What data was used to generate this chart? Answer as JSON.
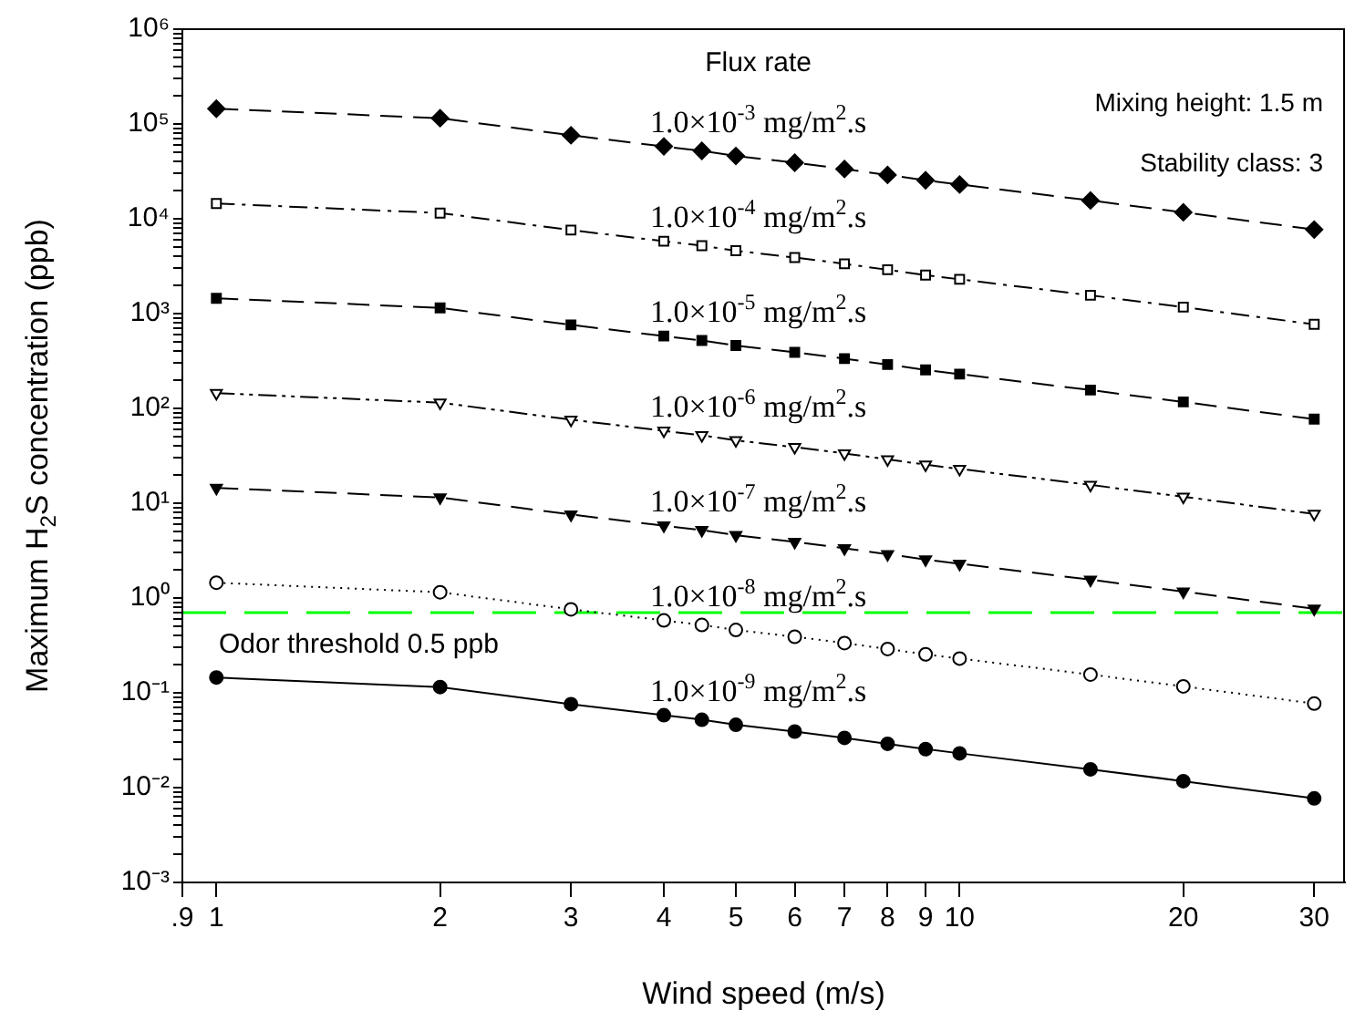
{
  "chart_data": {
    "type": "line",
    "xlabel": "Wind speed (m/s)",
    "ylabel": "Maximum H$_{2}$S concentration (ppb)",
    "legend_title": "Flux rate",
    "annotations": [
      "Mixing height: 1.5 m",
      "Stability class: 3"
    ],
    "x": [
      1,
      2,
      3,
      4,
      4.5,
      5,
      6,
      7,
      8,
      9,
      10,
      15,
      20,
      30
    ],
    "series": [
      {
        "name": "1.0×10$^{-3}$ mg/m$^{2}$.s",
        "color": "#000000",
        "marker": "diamond",
        "line_style": "dashed",
        "values": [
          145000,
          115000,
          76000,
          58000,
          52000,
          46000,
          39000,
          33500,
          29000,
          25500,
          23000,
          15600,
          11700,
          7700
        ]
      },
      {
        "name": "1.0×10$^{-4}$ mg/m$^{2}$.s",
        "color": "#000000",
        "marker": "square-open",
        "line_style": "dashdot",
        "values": [
          14500,
          11500,
          7600,
          5800,
          5200,
          4600,
          3900,
          3350,
          2900,
          2550,
          2300,
          1560,
          1170,
          770
        ]
      },
      {
        "name": "1.0×10$^{-5}$ mg/m$^{2}$.s",
        "color": "#000000",
        "marker": "square",
        "line_style": "dashed",
        "values": [
          1450,
          1150,
          760,
          580,
          520,
          460,
          390,
          335,
          290,
          255,
          230,
          156,
          117,
          77
        ]
      },
      {
        "name": "1.0×10$^{-6}$ mg/m$^{2}$.s",
        "color": "#000000",
        "marker": "triangle-open",
        "line_style": "dashdotdot",
        "values": [
          145,
          115,
          76,
          58,
          52,
          46,
          39,
          33.5,
          29,
          25.5,
          23,
          15.6,
          11.7,
          7.7
        ]
      },
      {
        "name": "1.0×10$^{-7}$ mg/m$^{2}$.s",
        "color": "#000000",
        "marker": "triangle",
        "line_style": "dashed",
        "values": [
          14.5,
          11.5,
          7.6,
          5.8,
          5.2,
          4.6,
          3.9,
          3.35,
          2.9,
          2.55,
          2.3,
          1.56,
          1.17,
          0.77
        ]
      },
      {
        "name": "1.0×10$^{-8}$ mg/m$^{2}$.s",
        "color": "#000000",
        "marker": "circle-open",
        "line_style": "dotted",
        "values": [
          1.45,
          1.15,
          0.76,
          0.58,
          0.52,
          0.46,
          0.39,
          0.335,
          0.29,
          0.255,
          0.23,
          0.156,
          0.117,
          0.077
        ]
      },
      {
        "name": "1.0×10$^{-9}$ mg/m$^{2}$.s",
        "color": "#000000",
        "marker": "circle",
        "line_style": "solid",
        "values": [
          0.145,
          0.115,
          0.076,
          0.058,
          0.052,
          0.046,
          0.039,
          0.0335,
          0.029,
          0.0255,
          0.023,
          0.0156,
          0.0117,
          0.0077
        ]
      }
    ],
    "ref_lines": [
      {
        "axis": "y",
        "value": 0.7,
        "label": "Odor threshold 0.5 ppb",
        "color": "#00ff00",
        "line_style": "dashed"
      }
    ],
    "log": "xy",
    "grid": false,
    "legend": false,
    "xlim": [
      0.9,
      33
    ],
    "xticks": [
      {
        "value": 0.9,
        "label": ".9"
      },
      1,
      2,
      3,
      4,
      5,
      6,
      7,
      8,
      9,
      10,
      20,
      30
    ],
    "ylim": [
      0.001,
      1000000
    ],
    "yticks": [
      {
        "value": 0.001,
        "label": "10⁻³"
      },
      {
        "value": 0.01,
        "label": "10⁻²"
      },
      {
        "value": 0.1,
        "label": "10⁻¹"
      },
      {
        "value": 1,
        "label": "10⁰"
      },
      {
        "value": 10,
        "label": "10¹"
      },
      {
        "value": 100,
        "label": "10²"
      },
      {
        "value": 1000,
        "label": "10³"
      },
      {
        "value": 10000,
        "label": "10⁴"
      },
      {
        "value": 100000,
        "label": "10⁵"
      },
      {
        "value": 1000000,
        "label": "10⁶"
      },
      {
        "value": 0.002,
        "label": null
      },
      {
        "value": 0.003,
        "label": null
      },
      {
        "value": 0.004,
        "label": null
      },
      {
        "value": 0.005,
        "label": null
      },
      {
        "value": 0.006,
        "label": null
      },
      {
        "value": 0.007,
        "label": null
      },
      {
        "value": 0.008,
        "label": null
      },
      {
        "value": 0.009,
        "label": null
      },
      {
        "value": 0.02,
        "label": null
      },
      {
        "value": 0.03,
        "label": null
      },
      {
        "value": 0.04,
        "label": null
      },
      {
        "value": 0.05,
        "label": null
      },
      {
        "value": 0.06,
        "label": null
      },
      {
        "value": 0.07,
        "label": null
      },
      {
        "value": 0.08,
        "label": null
      },
      {
        "value": 0.09,
        "label": null
      },
      {
        "value": 0.2,
        "label": null
      },
      {
        "value": 0.3,
        "label": null
      },
      {
        "value": 0.4,
        "label": null
      },
      {
        "value": 0.5,
        "label": null
      },
      {
        "value": 0.6,
        "label": null
      },
      {
        "value": 0.7,
        "label": null
      },
      {
        "value": 0.8,
        "label": null
      },
      {
        "value": 0.9,
        "label": null
      },
      {
        "value": 2,
        "label": null
      },
      {
        "value": 3,
        "label": null
      },
      {
        "value": 4,
        "label": null
      },
      {
        "value": 5,
        "label": null
      },
      {
        "value": 6,
        "label": null
      },
      {
        "value": 7,
        "label": null
      },
      {
        "value": 8,
        "label": null
      },
      {
        "value": 9,
        "label": null
      },
      {
        "value": 20,
        "label": null
      },
      {
        "value": 30,
        "label": null
      },
      {
        "value": 40,
        "label": null
      },
      {
        "value": 50,
        "label": null
      },
      {
        "value": 60,
        "label": null
      },
      {
        "value": 70,
        "label": null
      },
      {
        "value": 80,
        "label": null
      },
      {
        "value": 90,
        "label": null
      },
      {
        "value": 200,
        "label": null
      },
      {
        "value": 300,
        "label": null
      },
      {
        "value": 400,
        "label": null
      },
      {
        "value": 500,
        "label": null
      },
      {
        "value": 600,
        "label": null
      },
      {
        "value": 700,
        "label": null
      },
      {
        "value": 800,
        "label": null
      },
      {
        "value": 900,
        "label": null
      },
      {
        "value": 2000,
        "label": null
      },
      {
        "value": 3000,
        "label": null
      },
      {
        "value": 4000,
        "label": null
      },
      {
        "value": 5000,
        "label": null
      },
      {
        "value": 6000,
        "label": null
      },
      {
        "value": 7000,
        "label": null
      },
      {
        "value": 8000,
        "label": null
      },
      {
        "value": 9000,
        "label": null
      },
      {
        "value": 20000,
        "label": null
      },
      {
        "value": 30000,
        "label": null
      },
      {
        "value": 40000,
        "label": null
      },
      {
        "value": 50000,
        "label": null
      },
      {
        "value": 60000,
        "label": null
      },
      {
        "value": 70000,
        "label": null
      },
      {
        "value": 80000,
        "label": null
      },
      {
        "value": 90000,
        "label": null
      },
      {
        "value": 200000,
        "label": null
      },
      {
        "value": 300000,
        "label": null
      },
      {
        "value": 400000,
        "label": null
      },
      {
        "value": 500000,
        "label": null
      },
      {
        "value": 600000,
        "label": null
      },
      {
        "value": 700000,
        "label": null
      },
      {
        "value": 800000,
        "label": null
      },
      {
        "value": 900000,
        "label": null
      }
    ]
  }
}
